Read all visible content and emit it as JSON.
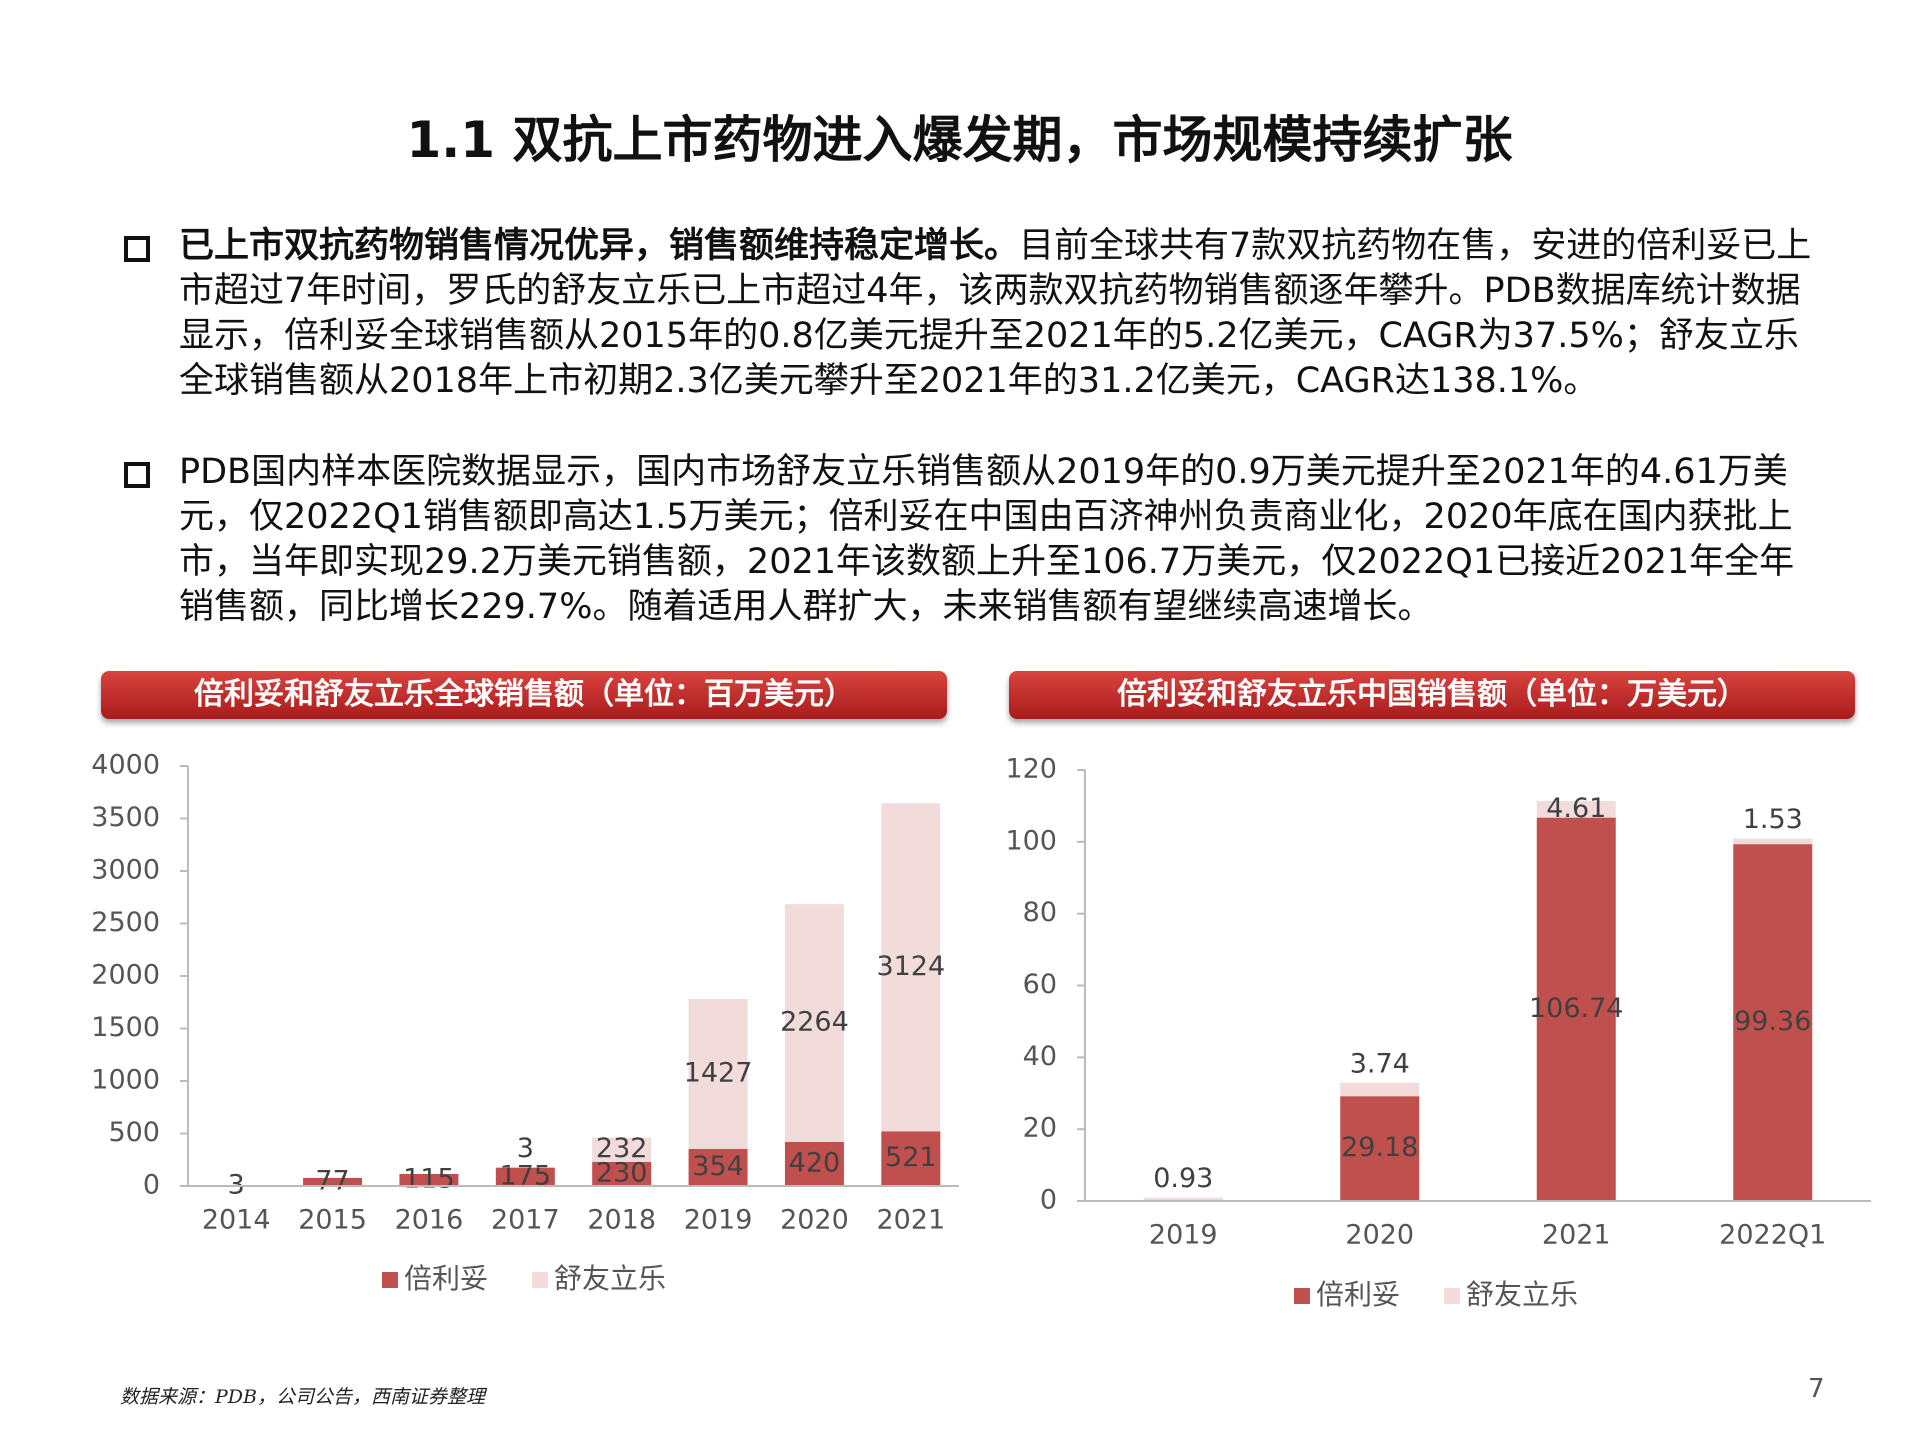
{
  "title": "1.1 双抗上市药物进入爆发期，市场规模持续扩张",
  "bullets": [
    {
      "bold": "已上市双抗药物销售情况优异，销售额维持稳定增长。",
      "text": "目前全球共有7款双抗药物在售，安进的倍利妥已上市超过7年时间，罗氏的舒友立乐已上市超过4年，该两款双抗药物销售额逐年攀升。PDB数据库统计数据显示，倍利妥全球销售额从2015年的0.8亿美元提升至2021年的5.2亿美元，CAGR为37.5%；舒友立乐全球销售额从2018年上市初期2.3亿美元攀升至2021年的31.2亿美元，CAGR达138.1%。"
    },
    {
      "text": "PDB国内样本医院数据显示，国内市场舒友立乐销售额从2019年的0.9万美元提升至2021年的4.61万美元，仅2022Q1销售额即高达1.5万美元；倍利妥在中国由百济神州负责商业化，2020年底在国内获批上市，当年即实现29.2万美元销售额，2021年该数额上升至106.7万美元，仅2022Q1已接近2021年全年销售额，同比增长229.7%。随着适用人群扩大，未来销售额有望继续高速增长。"
    }
  ],
  "chart_data": [
    {
      "type": "bar",
      "stacked": true,
      "title": "倍利妥和舒友立乐全球销售额（单位：百万美元）",
      "categories": [
        "2014",
        "2015",
        "2016",
        "2017",
        "2018",
        "2019",
        "2020",
        "2021"
      ],
      "series": [
        {
          "name": "倍利妥",
          "color": "#c0504d",
          "values": [
            3,
            77,
            115,
            175,
            230,
            354,
            420,
            521
          ]
        },
        {
          "name": "舒友立乐",
          "color": "#f2dcdb",
          "values": [
            null,
            null,
            null,
            3,
            232,
            1427,
            2264,
            3124
          ]
        }
      ],
      "ylim": [
        0,
        4000
      ],
      "yticks": [
        0,
        500,
        1000,
        1500,
        2000,
        2500,
        3000,
        3500,
        4000
      ],
      "legend": "bottom"
    },
    {
      "type": "bar",
      "stacked": true,
      "title": "倍利妥和舒友立乐中国销售额（单位：万美元）",
      "categories": [
        "2019",
        "2020",
        "2021",
        "2022Q1"
      ],
      "series": [
        {
          "name": "倍利妥",
          "color": "#c0504d",
          "values": [
            null,
            29.18,
            106.74,
            99.36
          ]
        },
        {
          "name": "舒友立乐",
          "color": "#f2dcdb",
          "values": [
            0.93,
            3.74,
            4.61,
            1.53
          ]
        }
      ],
      "ylim": [
        0,
        120
      ],
      "yticks": [
        0,
        20,
        40,
        60,
        80,
        100,
        120
      ],
      "legend": "bottom"
    }
  ],
  "source": "数据来源：PDB，公司公告，西南证券整理",
  "page": "7"
}
